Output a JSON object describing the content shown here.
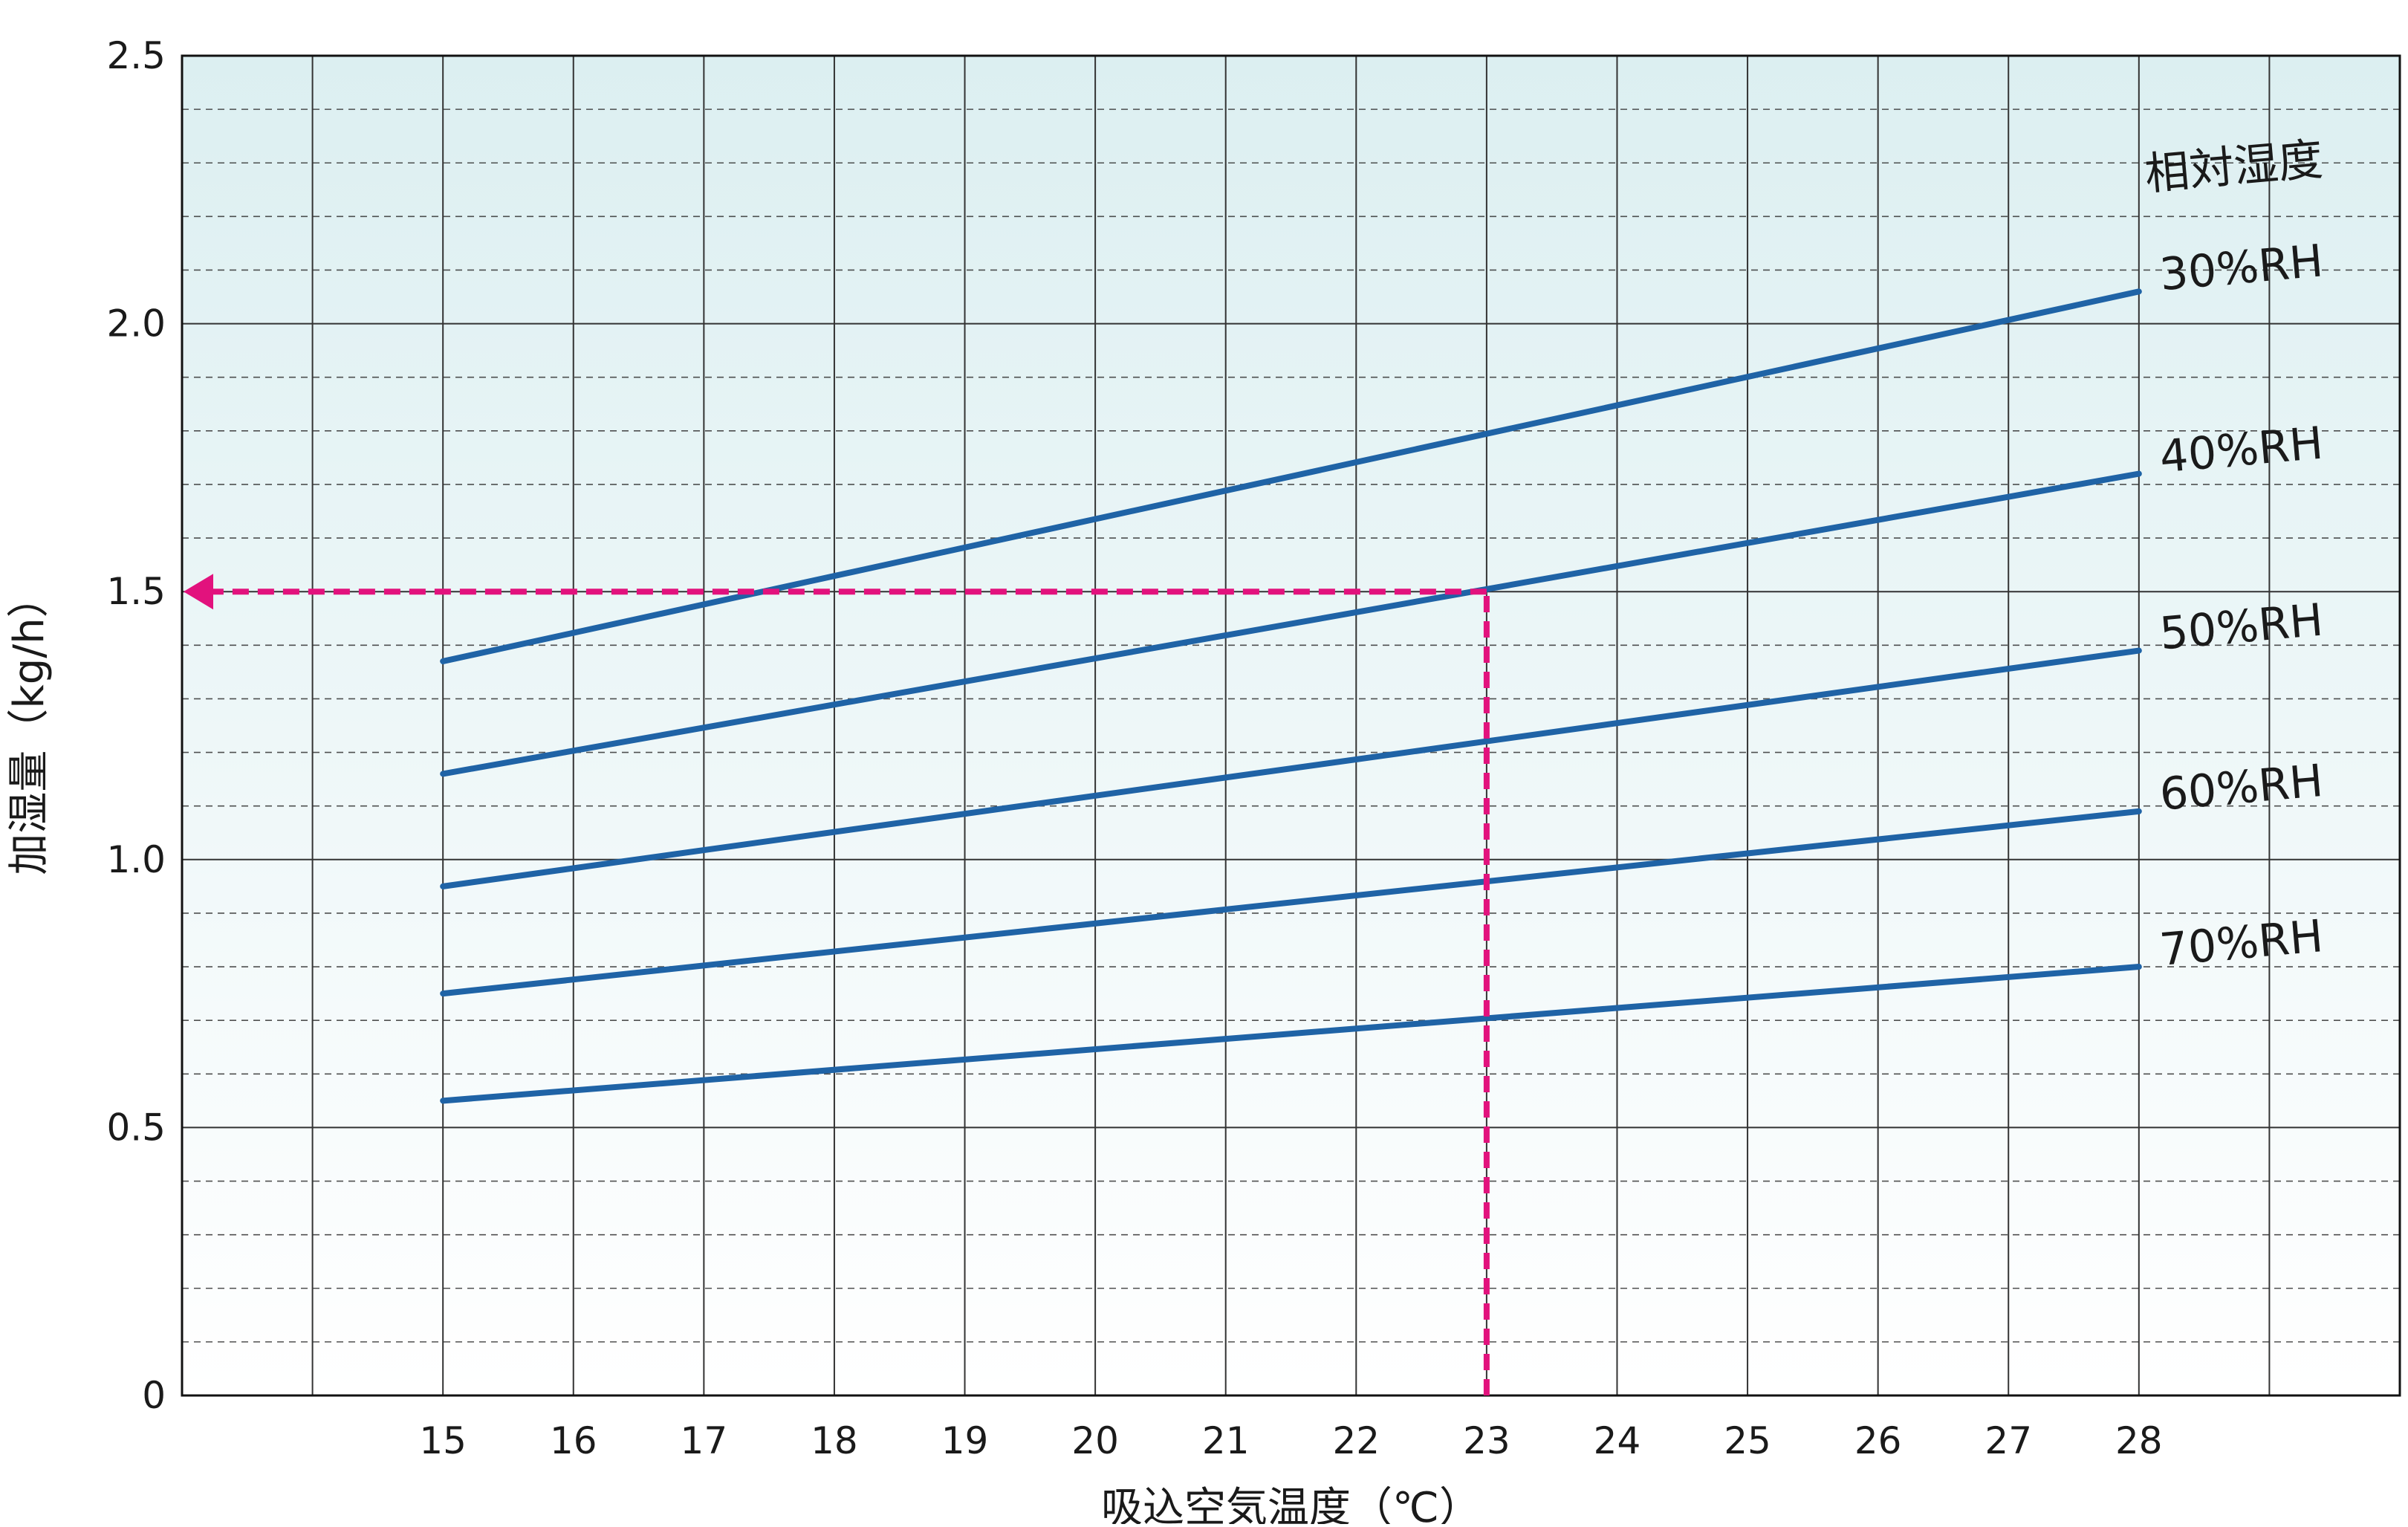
{
  "chart_data": {
    "type": "line",
    "title": "",
    "xlabel": "吸込空気温度（℃）",
    "ylabel": "加湿量（kg/h）",
    "xlim": [
      13,
      30
    ],
    "ylim": [
      0,
      2.5
    ],
    "x_ticks": [
      15,
      16,
      17,
      18,
      19,
      20,
      21,
      22,
      23,
      24,
      25,
      26,
      27,
      28
    ],
    "y_ticks": [
      0,
      0.5,
      1.0,
      1.5,
      2.0,
      2.5
    ],
    "x_tick_labels": [
      "15",
      "16",
      "17",
      "18",
      "19",
      "20",
      "21",
      "22",
      "23",
      "24",
      "25",
      "26",
      "27",
      "28"
    ],
    "y_tick_labels": [
      "0",
      "0.5",
      "1.0",
      "1.5",
      "2.0",
      "2.5"
    ],
    "grid": true,
    "minor_grid_step": 0.1,
    "legend_title": "相対湿度",
    "legend_placement": "right",
    "x": [
      15,
      28
    ],
    "series": [
      {
        "name": "30%RH",
        "values": [
          1.37,
          2.06
        ]
      },
      {
        "name": "40%RH",
        "values": [
          1.16,
          1.72
        ]
      },
      {
        "name": "50%RH",
        "values": [
          0.95,
          1.39
        ]
      },
      {
        "name": "60%RH",
        "values": [
          0.75,
          1.09
        ]
      },
      {
        "name": "70%RH",
        "values": [
          0.55,
          0.8
        ]
      }
    ],
    "annotation": {
      "x": 23,
      "y": 1.5,
      "style": "dashed arrow"
    },
    "colors": {
      "series": "#1f63a6",
      "annotation": "#e2127d",
      "grid": "#333333",
      "background_top": "#dceff1",
      "background_bottom": "#ffffff"
    }
  }
}
